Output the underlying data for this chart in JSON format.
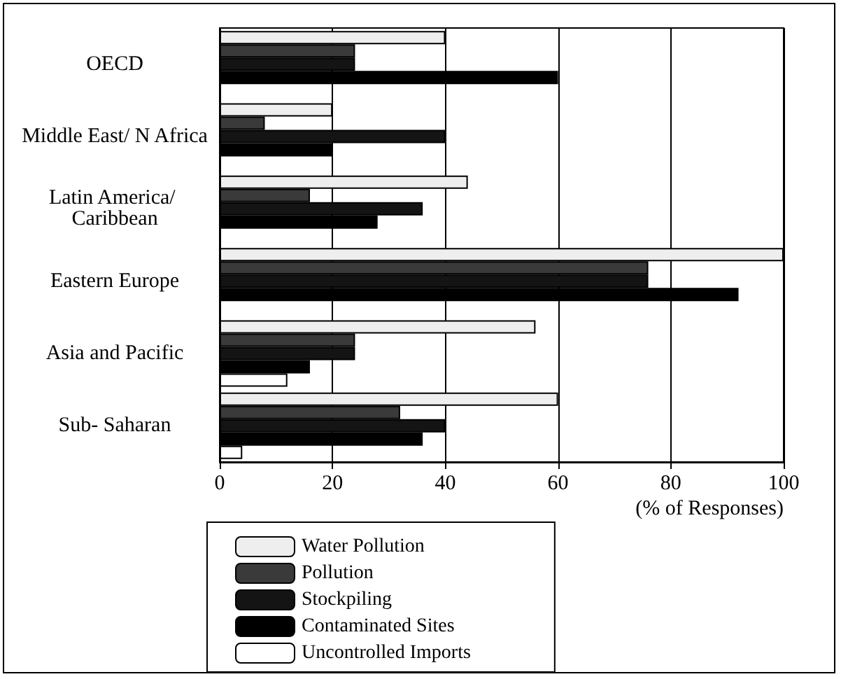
{
  "chart_data": {
    "type": "bar",
    "orientation": "horizontal",
    "xlabel": "(% of Responses)",
    "categories": [
      "OECD",
      "Middle East/ N Africa",
      "Latin America/ Caribbean",
      "Eastern Europe",
      "Asia and Pacific",
      "Sub- Saharan"
    ],
    "series": [
      {
        "name": "Water Pollution",
        "color": "#eeeeee",
        "values": [
          40,
          20,
          44,
          100,
          56,
          60
        ]
      },
      {
        "name": "Pollution",
        "color": "#3a3a3a",
        "values": [
          24,
          8,
          16,
          76,
          24,
          32
        ]
      },
      {
        "name": "Stockpiling",
        "color": "#141414",
        "values": [
          24,
          40,
          36,
          76,
          24,
          40
        ]
      },
      {
        "name": "Contaminated Sites",
        "color": "#000000",
        "values": [
          60,
          20,
          28,
          92,
          16,
          36
        ]
      },
      {
        "name": "Uncontrolled Imports",
        "color": "#ffffff",
        "values": [
          0,
          0,
          0,
          0,
          12,
          4
        ]
      }
    ],
    "xlim": [
      0,
      100
    ],
    "xticks": [
      0,
      20,
      40,
      60,
      80,
      100
    ],
    "grid": "x",
    "legend": "bottom left"
  }
}
